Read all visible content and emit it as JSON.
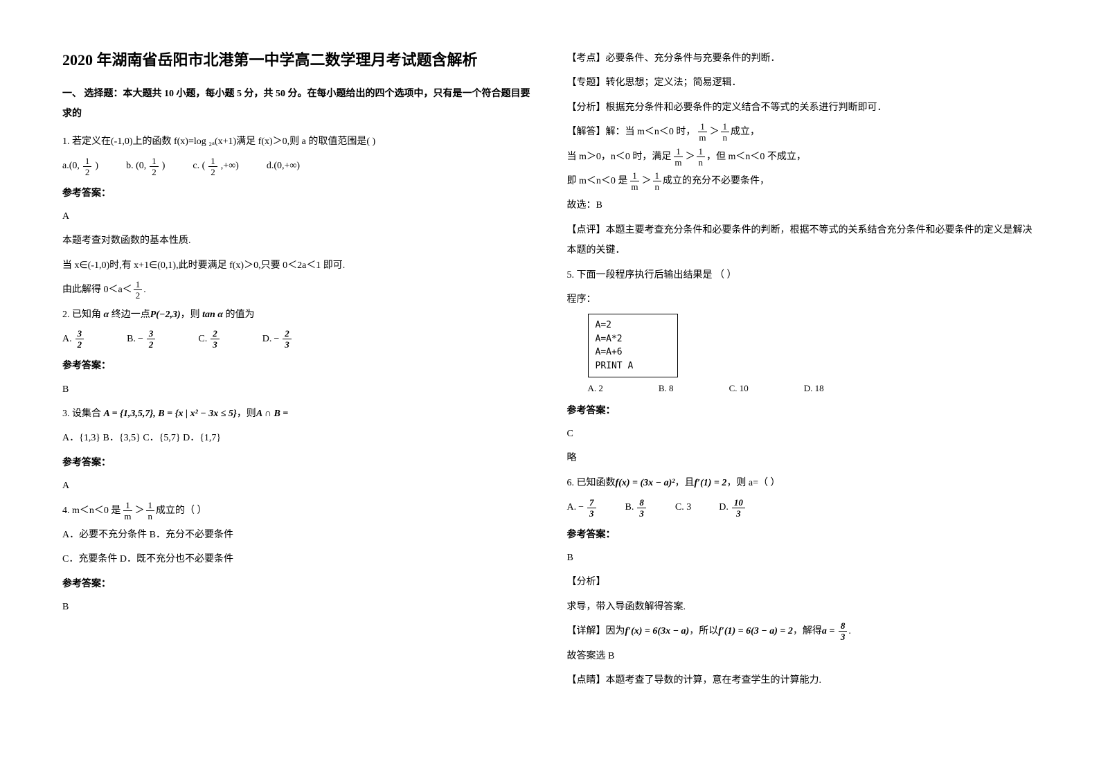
{
  "title": "2020 年湖南省岳阳市北港第一中学高二数学理月考试题含解析",
  "section1": "一、 选择题：本大题共 10 小题，每小题 5 分，共 50 分。在每小题给出的四个选项中，只有是一个符合题目要求的",
  "q1": {
    "stem": "1. 若定义在(-1,0)上的函数 f(x)=log ₂ₐ(x+1)满足 f(x)＞0,则 a 的取值范围是( )",
    "a_lbl": "a.(0,",
    "b_lbl": "b. (0,",
    "c_lbl": "c. (",
    "d_lbl": "d.(0,+∞)",
    "a_suf": ")",
    "b_suf": ")",
    "c_suf": ",+∞)",
    "ans_head": "参考答案：",
    "ans": "A",
    "expl1": "本题考查对数函数的基本性质.",
    "expl2": "当 x∈(-1,0)时,有 x+1∈(0,1),此时要满足 f(x)＞0,只要 0＜2a＜1 即可.",
    "expl3_pre": "由此解得 0＜a＜",
    "expl3_suf": "."
  },
  "q2": {
    "stem_pre": "2. 已知角 ",
    "alpha": "α",
    "stem_mid": " 终边一点",
    "pt": "P(−2,3)",
    "stem_mid2": "，则",
    "tan": "tan α",
    "stem_suf": " 的值为",
    "a": "A.",
    "b": "B.",
    "c": "C.",
    "d": "D.",
    "ans_head": "参考答案：",
    "ans": "B"
  },
  "q3": {
    "stem_pre": "3. 设集合 ",
    "set": "A = {1,3,5,7}, B = {x | x² − 3x ≤ 5}",
    "stem_mid": "，则",
    "inter": "A ∩ B =",
    "opts": "A．{1,3}    B．{3,5}    C．{5,7}    D．{1,7}",
    "ans_head": "参考答案：",
    "ans": "A"
  },
  "q4": {
    "stem_pre": "4. m＜n＜0 是",
    "stem_suf": "成立的（      ）",
    "optA": "A．必要不充分条件    B．充分不必要条件",
    "optC": "C．充要条件    D．既不充分也不必要条件",
    "ans_head": "参考答案：",
    "ans": "B"
  },
  "right": {
    "l1": "【考点】必要条件、充分条件与充要条件的判断．",
    "l2": "【专题】转化思想；定义法；简易逻辑．",
    "l3": "【分析】根据充分条件和必要条件的定义结合不等式的关系进行判断即可．",
    "l4_pre": "【解答】解：当 m＜n＜0 时，",
    "l4_suf": "成立，",
    "l5_pre": "当 m＞0，n＜0 时，满足",
    "l5_mid": "，但 m＜n＜0 不成立，",
    "l6_pre": "即 m＜n＜0 是",
    "l6_suf": "成立的充分不必要条件，",
    "l7": "故选：B",
    "l8": "【点评】本题主要考查充分条件和必要条件的判断，根据不等式的关系结合充分条件和必要条件的定义是解决本题的关键．"
  },
  "q5": {
    "stem": "5. 下面一段程序执行后输出结果是          （        ）",
    "prog_label": "程序：",
    "code": "A=2\nA=A*2\nA=A+6\nPRINT A",
    "oA": "A. 2",
    "oB": "B. 8",
    "oC": "C. 10",
    "oD": "D. 18",
    "ans_head": "参考答案：",
    "ans": "C",
    "note": "略"
  },
  "q6": {
    "stem_pre": "6. 已知函数",
    "fx": "f(x) = (3x − a)²",
    "stem_mid": "，且",
    "fp": "f′(1) = 2",
    "stem_suf": "，则 a=（        ）",
    "a": "A.",
    "b": "B.",
    "c": "C. 3",
    "d": "D.",
    "ans_head": "参考答案：",
    "ans": "B",
    "an1": "【分析】",
    "an2": "求导，带入导函数解得答案.",
    "det_pre": "【详解】因为",
    "det_f": "f′(x) = 6(3x − a)",
    "det_mid": "，所以",
    "det_f2": "f′(1) = 6(3 − a) = 2",
    "det_mid2": "，解得",
    "det_a": "a = ",
    "det_suf": ".",
    "det_end": "故答案选 B",
    "pt": "【点睛】本题考查了导数的计算，意在考查学生的计算能力."
  },
  "frac": {
    "n1": "1",
    "d2": "2",
    "n3": "3",
    "n2": "2",
    "d3": "3",
    "n7": "7",
    "n8": "8",
    "n10": "10"
  }
}
